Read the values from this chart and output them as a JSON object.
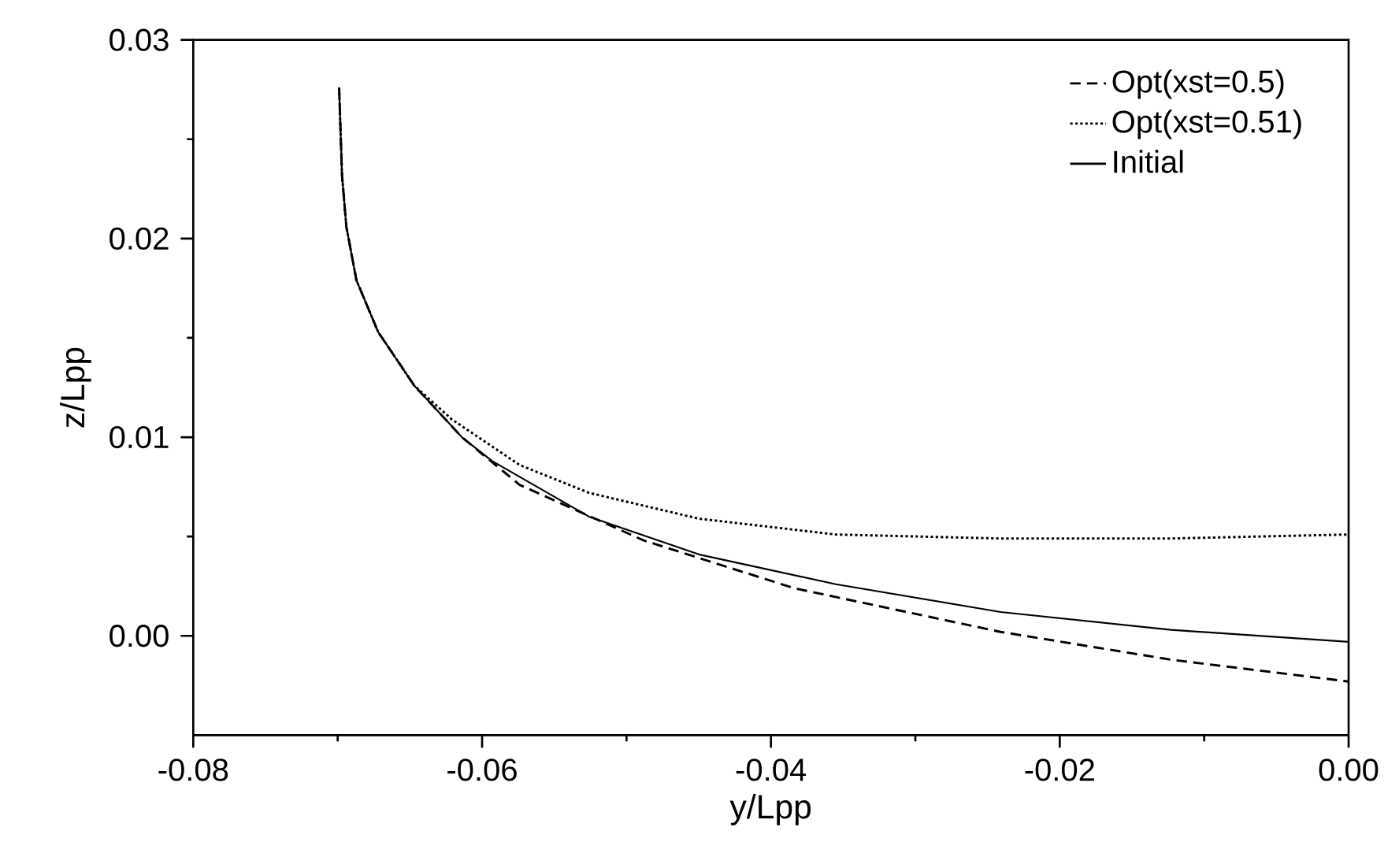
{
  "chart_data": {
    "type": "line",
    "xlabel": "y/Lpp",
    "ylabel": "z/Lpp",
    "xlim": [
      -0.08,
      0.0
    ],
    "ylim": [
      -0.005,
      0.03
    ],
    "xticks": [
      -0.08,
      -0.06,
      -0.04,
      -0.02,
      {
        "value": 0.0,
        "label": "0.00"
      }
    ],
    "yticks": [
      {
        "value": 0.0,
        "label": "0.00"
      },
      0.01,
      0.02,
      0.03
    ],
    "grid": false,
    "legend": "top right",
    "marker": "none",
    "series": [
      {
        "name": "Opt(xst=0.5)",
        "color": "#000000",
        "line_style": "dashed",
        "x": [
          -0.0699,
          -0.0697,
          -0.0694,
          -0.0687,
          -0.0672,
          -0.0647,
          -0.0614,
          -0.0574,
          -0.0488,
          -0.0384,
          -0.0241,
          -0.0123,
          0.0
        ],
        "values": [
          0.0276,
          0.0232,
          0.0206,
          0.0179,
          0.0153,
          0.0126,
          0.01,
          0.0076,
          0.0048,
          0.0024,
          0.0002,
          -0.0012,
          -0.0023
        ]
      },
      {
        "name": "Opt(xst=0.51)",
        "color": "#000000",
        "line_style": "dotted",
        "x": [
          -0.0699,
          -0.0697,
          -0.0694,
          -0.0687,
          -0.0672,
          -0.0647,
          -0.0621,
          -0.0574,
          -0.0526,
          -0.045,
          -0.0355,
          -0.0241,
          -0.0123,
          0.0
        ],
        "values": [
          0.0276,
          0.0232,
          0.0206,
          0.0179,
          0.0153,
          0.0126,
          0.0109,
          0.0086,
          0.0072,
          0.0059,
          0.0051,
          0.0049,
          0.0049,
          0.0051
        ]
      },
      {
        "name": "Initial",
        "color": "#000000",
        "line_style": "solid",
        "x": [
          -0.0699,
          -0.0697,
          -0.0694,
          -0.0687,
          -0.0672,
          -0.0647,
          -0.0614,
          -0.0593,
          -0.0526,
          -0.045,
          -0.0355,
          -0.0241,
          -0.0123,
          0.0
        ],
        "values": [
          0.0276,
          0.0232,
          0.0206,
          0.0179,
          0.0153,
          0.0126,
          0.01,
          0.0088,
          0.006,
          0.0041,
          0.0026,
          0.0012,
          0.0003,
          -0.0003
        ]
      }
    ]
  }
}
